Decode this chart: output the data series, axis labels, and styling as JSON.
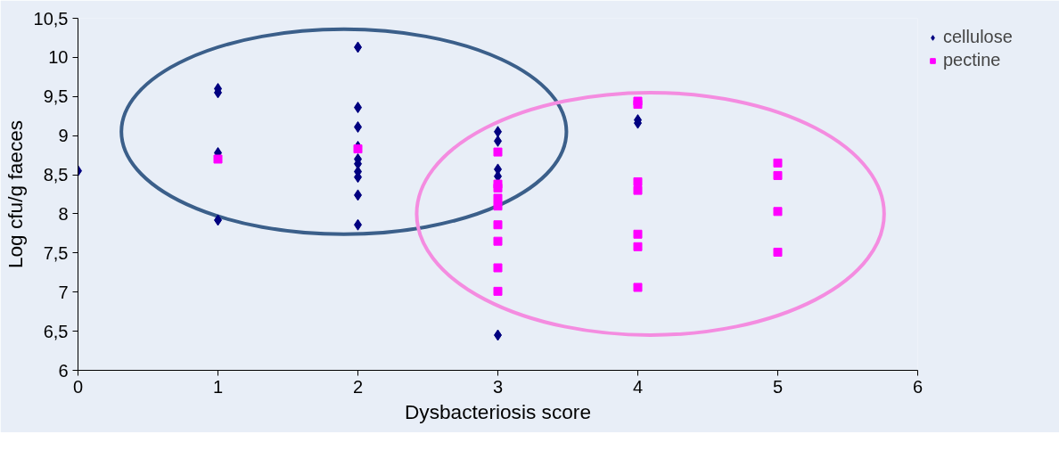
{
  "chart_data": {
    "type": "scatter",
    "xlabel": "Dysbacteriosis score",
    "ylabel": "Log cfu/g faeces",
    "xlim": [
      0,
      6
    ],
    "xticks": [
      0,
      1,
      2,
      3,
      4,
      5,
      6
    ],
    "ylim": [
      6,
      10.5
    ],
    "yticks": [
      6,
      {
        "value": 6.5,
        "label": "6,5"
      },
      7,
      {
        "value": 7.5,
        "label": "7,5"
      },
      8,
      {
        "value": 8.5,
        "label": "8,5"
      },
      9,
      {
        "value": 9.5,
        "label": "9,5"
      },
      10,
      {
        "value": 10.5,
        "label": "10,5"
      }
    ],
    "grid": false,
    "legend": "top right",
    "series": [
      {
        "name": "cellulose",
        "color": "#000080",
        "marker": "diamond",
        "x": [
          0,
          1,
          1,
          1,
          1,
          2,
          2,
          2,
          2,
          2,
          2,
          2,
          2,
          2,
          2,
          3,
          3,
          3,
          3,
          3,
          4,
          4
        ],
        "values": [
          8.55,
          9.6,
          9.55,
          8.78,
          7.92,
          10.13,
          9.36,
          9.11,
          8.86,
          8.7,
          8.64,
          8.54,
          8.47,
          8.24,
          7.86,
          9.05,
          8.93,
          8.57,
          8.48,
          6.45,
          9.2,
          9.16
        ]
      },
      {
        "name": "pectine",
        "color": "#ff00ff",
        "marker": "square",
        "x": [
          1,
          2,
          3,
          3,
          3,
          3,
          3,
          3,
          3,
          3,
          3,
          4,
          4,
          4,
          4,
          4,
          4,
          4,
          5,
          5,
          5,
          5
        ],
        "values": [
          8.7,
          8.83,
          8.79,
          8.38,
          8.33,
          8.2,
          8.1,
          7.86,
          7.65,
          7.31,
          7.01,
          9.44,
          9.4,
          8.41,
          8.3,
          7.74,
          7.58,
          7.06,
          8.65,
          8.49,
          8.03,
          7.51
        ]
      }
    ]
  }
}
